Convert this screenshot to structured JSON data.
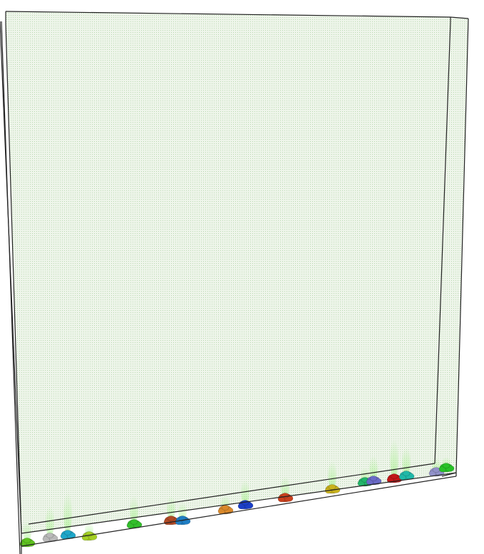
{
  "scene": {
    "background": "#ffffff",
    "field_tint": "#eef5ea",
    "dot_color": "#b9d8b1",
    "edge_color": "#222222",
    "plume_color": "#8cf06a"
  },
  "clusters": [
    {
      "color": "#5fc31f"
    },
    {
      "color": "#b9b9b9"
    },
    {
      "color": "#1ea6c9"
    },
    {
      "color": "#a4cf23"
    },
    {
      "color": "#33bf2c"
    },
    {
      "color": "#b24a25"
    },
    {
      "color": "#1f7ec4"
    },
    {
      "color": "#d9892b"
    },
    {
      "color": "#1b3fc7"
    },
    {
      "color": "#c9411e"
    },
    {
      "color": "#c9b21c"
    },
    {
      "color": "#21b56a"
    },
    {
      "color": "#6a6ac7"
    },
    {
      "color": "#c21818"
    },
    {
      "color": "#1fb8a8"
    },
    {
      "color": "#9191c9"
    },
    {
      "color": "#26c226"
    }
  ]
}
